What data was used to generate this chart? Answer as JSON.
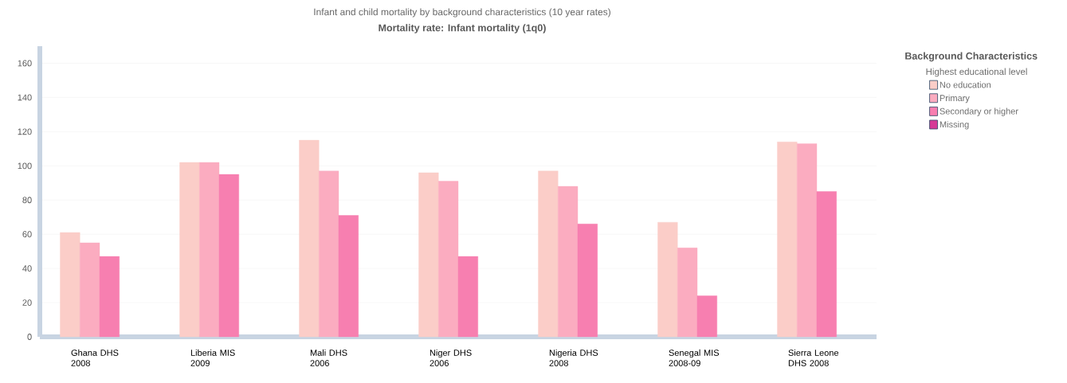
{
  "chart_data": {
    "type": "bar",
    "title": "Infant and child mortality by background characteristics (10 year rates)",
    "subtitle": "Mortality rate: Infant mortality (1q0)",
    "categories": [
      "Ghana DHS 2008",
      "Liberia MIS 2009",
      "Mali DHS 2006",
      "Niger DHS 2006",
      "Nigeria DHS 2008",
      "Senegal MIS 2008-09",
      "Sierra Leone DHS 2008"
    ],
    "series": [
      {
        "name": "No education",
        "color": "#fbcdc8",
        "values": [
          61,
          102,
          115,
          96,
          97,
          67,
          114
        ]
      },
      {
        "name": "Primary",
        "color": "#fbacc0",
        "values": [
          55,
          102,
          97,
          91,
          88,
          52,
          113
        ]
      },
      {
        "name": "Secondary or higher",
        "color": "#f77fb0",
        "values": [
          47,
          95,
          71,
          47,
          66,
          24,
          85
        ]
      },
      {
        "name": "Missing",
        "color": "#d63a96",
        "values": [
          null,
          null,
          null,
          null,
          null,
          null,
          null
        ]
      }
    ],
    "legend_title": "Background Characteristics",
    "annotations": [
      "Highest educational level"
    ],
    "ylim": [
      0,
      170
    ],
    "yticks": [
      0,
      20,
      40,
      60,
      80,
      100,
      120,
      140,
      160
    ],
    "grid": "y",
    "legend": "top right"
  }
}
